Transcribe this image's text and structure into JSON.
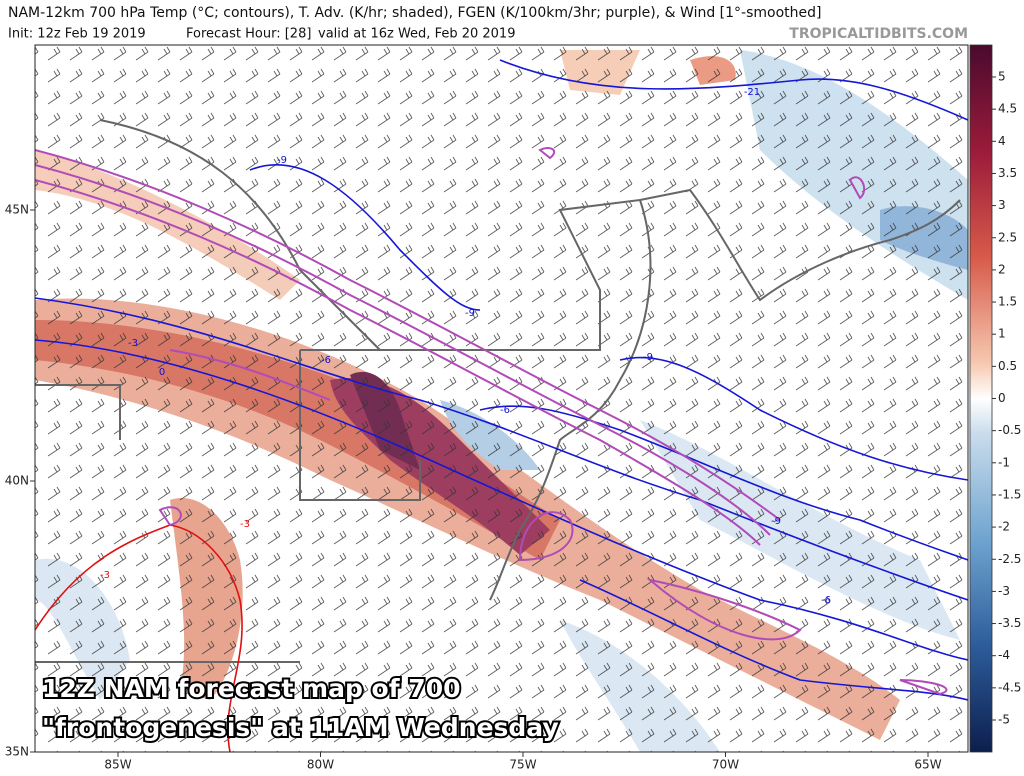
{
  "header": {
    "title": "NAM-12km 700 hPa Temp (°C; contours), T. Adv. (K/hr; shaded), FGEN (K/100km/3hr; purple), & Wind [1°-smoothed]",
    "init": "Init: 12z Feb 19 2019",
    "forecast_hour": "Forecast Hour: [28]",
    "valid": "valid at 16z Wed, Feb 20 2019",
    "watermark": "TROPICALTIDBITS.COM"
  },
  "colorbar": {
    "ticks": [
      5,
      4.5,
      4,
      3.5,
      3,
      2.5,
      2,
      1.5,
      1,
      0.5,
      0,
      -0.5,
      -1,
      -1.5,
      -2,
      -2.5,
      -3,
      -3.5,
      -4,
      -4.5,
      -5
    ]
  },
  "latitude_labels": [
    "45N",
    "40N",
    "35N"
  ],
  "longitude_labels": [
    "85W",
    "80W",
    "75W",
    "70W",
    "65W"
  ],
  "contour_labels": [
    "-21",
    "-9",
    "-9",
    "-3",
    "0",
    "-6",
    "-9",
    "-6",
    "-9",
    "-6",
    "-3",
    "-3"
  ],
  "caption": {
    "line1": "12Z NAM forecast map of 700",
    "line2": "\"frontogenesis\" at 11AM Wednesday"
  }
}
